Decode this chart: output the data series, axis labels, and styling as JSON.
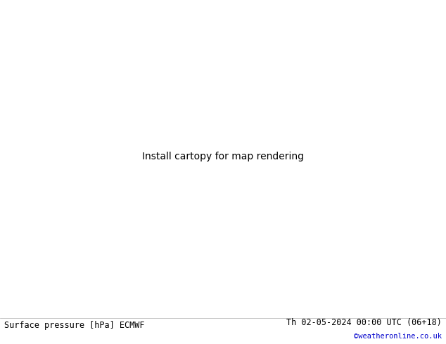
{
  "title_left": "Surface pressure [hPa] ECMWF",
  "title_right": "Th 02-05-2024 00:00 UTC (06+18)",
  "copyright": "©weatheronline.co.uk",
  "sea_color": "#c8d4e0",
  "land_color": "#c8dba8",
  "land_edge_color": "#888888",
  "gray_land_color": "#b8b8b8",
  "footer_bg": "#ffffff",
  "fig_width": 6.34,
  "fig_height": 4.9,
  "lon_min": 88,
  "lon_max": 175,
  "lat_min": -12,
  "lat_max": 52
}
